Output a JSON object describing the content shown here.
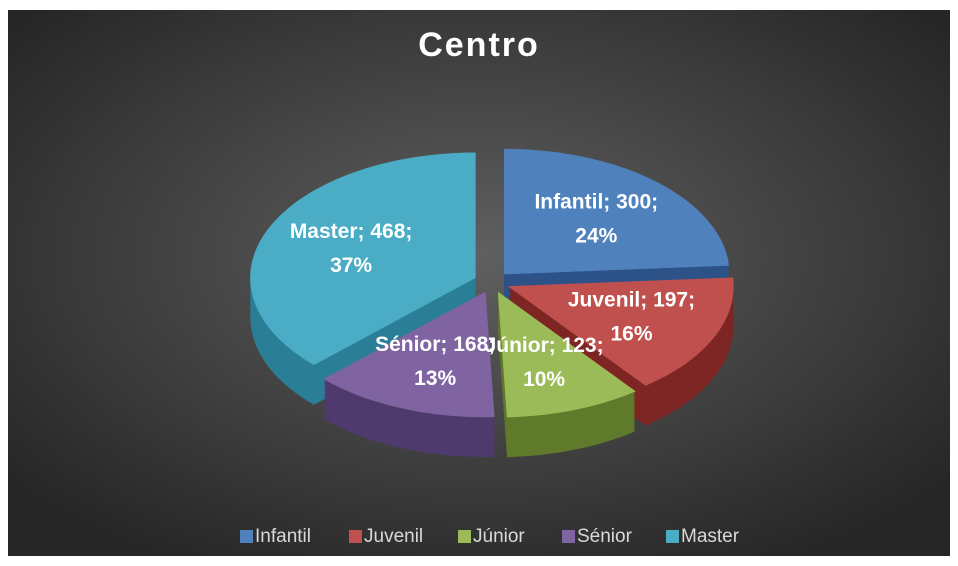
{
  "chart_data": {
    "type": "pie3d",
    "title": "Centro",
    "categories": [
      "Infantil",
      "Juvenil",
      "Júnior",
      "Sénior",
      "Master"
    ],
    "values": [
      300,
      197,
      123,
      168,
      468
    ],
    "value_labels": [
      [
        "Infantil; 300;",
        "24%"
      ],
      [
        "Juvenil; 197;",
        "16%"
      ],
      [
        "Júnior; 123;",
        "10%"
      ],
      [
        "Sénior; 168;",
        "13%"
      ],
      [
        "Master; 468;",
        "37%"
      ]
    ],
    "colors": [
      "#4f81bd",
      "#c0504d",
      "#9bbb59",
      "#8064a2",
      "#4bacc6"
    ],
    "side_colors": [
      "#2c5288",
      "#7d2624",
      "#5f7a2a",
      "#4e3a6c",
      "#2a7f96"
    ],
    "legend": "bottom"
  }
}
